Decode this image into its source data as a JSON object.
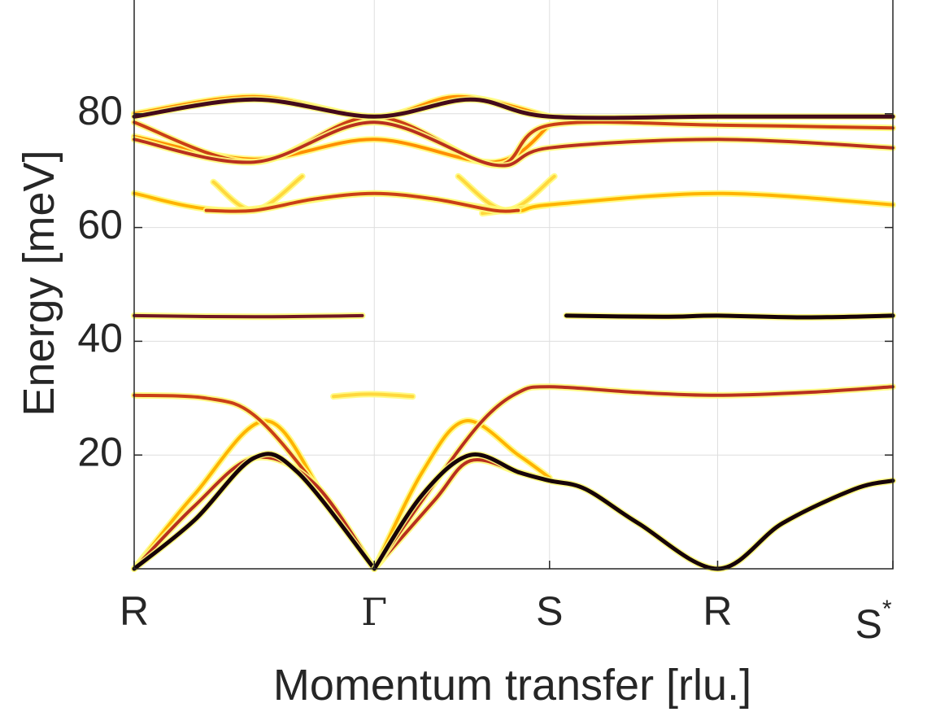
{
  "chart_data": {
    "type": "line",
    "xlabel": "Momentum transfer [rlu.]",
    "ylabel": "Energy [meV]",
    "ylim": [
      0,
      100
    ],
    "yticks": [
      20,
      40,
      60,
      80
    ],
    "xtick_labels": [
      "R",
      "Γ",
      "S",
      "R",
      "S*"
    ],
    "x_positions": [
      0,
      1,
      1.73,
      2.43,
      3.16
    ],
    "xlim": [
      0,
      3.16
    ],
    "grid": true,
    "legend": "none",
    "colormap": [
      "#fffb7a",
      "#ffb300",
      "#ff6a00",
      "#b8301f",
      "#5a0f24",
      "#000000"
    ],
    "series": [
      {
        "intensity": 0.95,
        "points": [
          [
            0,
            0
          ],
          [
            0.25,
            8.5
          ],
          [
            0.5,
            19.5
          ],
          [
            0.68,
            17
          ],
          [
            1,
            0
          ]
        ]
      },
      {
        "intensity": 0.6,
        "points": [
          [
            0,
            0
          ],
          [
            0.25,
            11
          ],
          [
            0.5,
            19.5
          ],
          [
            0.75,
            15
          ],
          [
            1,
            0
          ]
        ]
      },
      {
        "intensity": 0.2,
        "points": [
          [
            0,
            0
          ],
          [
            0.25,
            13
          ],
          [
            0.55,
            26
          ],
          [
            0.8,
            12
          ],
          [
            1,
            0
          ]
        ]
      },
      {
        "intensity": 0.55,
        "points": [
          [
            0,
            30.5
          ],
          [
            0.3,
            30
          ],
          [
            0.5,
            27
          ],
          [
            0.75,
            15
          ],
          [
            1,
            0
          ]
        ]
      },
      {
        "intensity": 0.95,
        "points": [
          [
            1,
            0
          ],
          [
            1.2,
            13
          ],
          [
            1.4,
            20
          ],
          [
            1.6,
            17
          ],
          [
            1.73,
            15.5
          ],
          [
            1.88,
            14
          ],
          [
            2.1,
            8
          ],
          [
            2.43,
            0
          ],
          [
            2.7,
            8
          ],
          [
            3.0,
            14
          ],
          [
            3.16,
            15.5
          ]
        ]
      },
      {
        "intensity": 0.6,
        "points": [
          [
            1,
            0
          ],
          [
            1.25,
            12
          ],
          [
            1.4,
            19
          ],
          [
            1.6,
            17
          ],
          [
            1.73,
            15.5
          ]
        ]
      },
      {
        "intensity": 0.2,
        "points": [
          [
            1,
            0
          ],
          [
            1.2,
            17
          ],
          [
            1.38,
            26
          ],
          [
            1.6,
            20
          ],
          [
            1.73,
            16
          ]
        ]
      },
      {
        "intensity": 0.6,
        "points": [
          [
            1,
            0
          ],
          [
            1.25,
            15
          ],
          [
            1.45,
            26
          ],
          [
            1.6,
            31
          ],
          [
            1.73,
            32
          ],
          [
            2.1,
            31
          ],
          [
            2.43,
            30.5
          ],
          [
            2.8,
            31
          ],
          [
            3.16,
            32
          ]
        ]
      },
      {
        "intensity": 0.1,
        "points": [
          [
            0.83,
            30.3
          ],
          [
            0.98,
            30.7
          ],
          [
            1.16,
            30.3
          ]
        ]
      },
      {
        "intensity": 0.75,
        "points": [
          [
            0,
            44.5
          ],
          [
            0.5,
            44.3
          ],
          [
            0.95,
            44.5
          ]
        ]
      },
      {
        "intensity": 0.95,
        "points": [
          [
            1.8,
            44.5
          ],
          [
            2.2,
            44.3
          ],
          [
            2.43,
            44.5
          ],
          [
            2.8,
            44.2
          ],
          [
            3.16,
            44.5
          ]
        ]
      },
      {
        "intensity": 0.2,
        "points": [
          [
            0,
            66
          ],
          [
            0.4,
            63
          ],
          [
            1,
            66
          ],
          [
            1.55,
            63
          ],
          [
            1.73,
            64
          ],
          [
            2.43,
            66
          ],
          [
            3.16,
            64
          ]
        ]
      },
      {
        "intensity": 0.55,
        "points": [
          [
            0.3,
            63
          ],
          [
            0.5,
            63
          ],
          [
            0.75,
            65
          ],
          [
            1,
            66
          ],
          [
            1.25,
            65
          ],
          [
            1.5,
            63
          ],
          [
            1.6,
            63
          ]
        ]
      },
      {
        "intensity": 0.1,
        "points": [
          [
            0.33,
            68
          ],
          [
            0.5,
            63
          ],
          [
            0.7,
            69
          ]
        ]
      },
      {
        "intensity": 0.1,
        "points": [
          [
            1.35,
            69
          ],
          [
            1.55,
            63
          ],
          [
            1.75,
            69
          ]
        ]
      },
      {
        "intensity": 0.1,
        "points": [
          [
            1.45,
            62.5
          ],
          [
            1.73,
            64
          ]
        ]
      },
      {
        "intensity": 0.6,
        "points": [
          [
            0,
            75.5
          ],
          [
            0.5,
            71.5
          ],
          [
            1,
            78.5
          ],
          [
            1.5,
            71
          ],
          [
            1.73,
            74
          ],
          [
            2.43,
            75.5
          ],
          [
            3.16,
            74
          ]
        ]
      },
      {
        "intensity": 0.3,
        "points": [
          [
            0,
            76
          ],
          [
            0.5,
            72
          ],
          [
            1,
            75.5
          ],
          [
            1.5,
            71.5
          ],
          [
            1.73,
            78
          ]
        ]
      },
      {
        "intensity": 0.55,
        "points": [
          [
            0,
            78.5
          ],
          [
            0.5,
            71.5
          ],
          [
            1,
            79.5
          ],
          [
            1.5,
            71
          ],
          [
            1.73,
            78
          ],
          [
            2.43,
            78
          ],
          [
            3.16,
            77.5
          ]
        ]
      },
      {
        "intensity": 0.85,
        "points": [
          [
            0,
            79.5
          ],
          [
            0.5,
            82.5
          ],
          [
            1,
            79.5
          ],
          [
            1.4,
            82.5
          ],
          [
            1.73,
            79.5
          ],
          [
            2.43,
            79.5
          ],
          [
            3.16,
            79.5
          ]
        ]
      },
      {
        "intensity": 0.3,
        "points": [
          [
            0,
            80
          ],
          [
            0.5,
            83
          ],
          [
            1,
            79.5
          ],
          [
            1.35,
            83
          ],
          [
            1.73,
            79.5
          ]
        ]
      }
    ]
  }
}
